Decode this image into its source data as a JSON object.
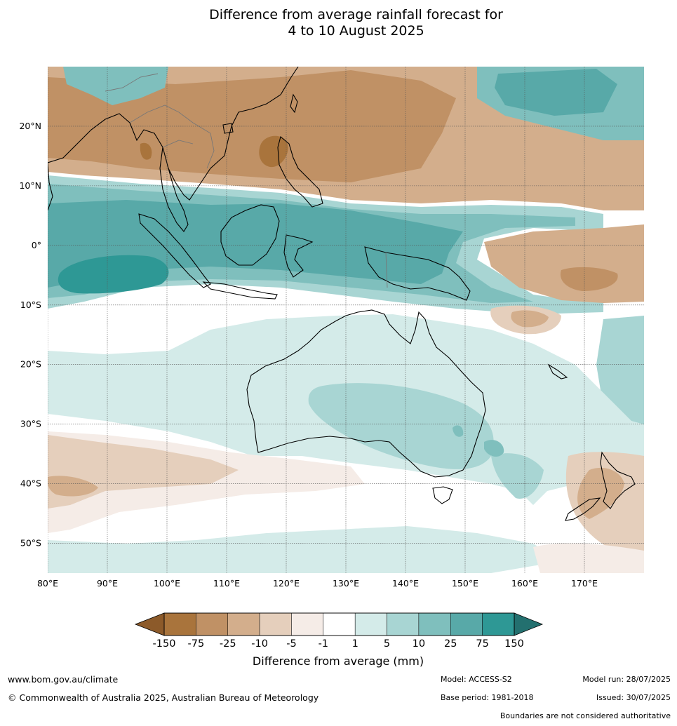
{
  "title": {
    "line1": "Difference from average rainfall forecast for",
    "line2": "4 to 10 August 2025"
  },
  "map": {
    "lat_labels": [
      "20°N",
      "10°N",
      "0°",
      "10°S",
      "20°S",
      "30°S",
      "40°S",
      "50°S"
    ],
    "lon_labels": [
      "80°E",
      "90°E",
      "100°E",
      "110°E",
      "120°E",
      "130°E",
      "140°E",
      "150°E",
      "160°E",
      "170°E"
    ],
    "extent": {
      "lon_min": 80,
      "lon_max": 180,
      "lat_min": -55,
      "lat_max": 30
    }
  },
  "colorbar": {
    "title": "Difference from average (mm)",
    "tick_labels": [
      "-150",
      "-75",
      "-25",
      "-10",
      "-5",
      "-1",
      "1",
      "5",
      "10",
      "25",
      "75",
      "150"
    ],
    "colors": [
      "#8c5a2a",
      "#a9743c",
      "#c09165",
      "#d3ae8c",
      "#e5cfbc",
      "#f5ece7",
      "#ffffff",
      "#d4ebe9",
      "#a8d5d3",
      "#7fbfbd",
      "#58a9a8",
      "#2e9895",
      "#23706f"
    ]
  },
  "footer": {
    "website": "www.bom.gov.au/climate",
    "copyright": "© Commonwealth of Australia 2025, Australian Bureau of Meteorology",
    "model": "Model: ACCESS-S2",
    "base_period": "Base period: 1981-2018",
    "model_run": "Model run: 28/07/2025",
    "issued": "Issued: 30/07/2025",
    "disclaimer": "Boundaries are not considered authoritative"
  }
}
